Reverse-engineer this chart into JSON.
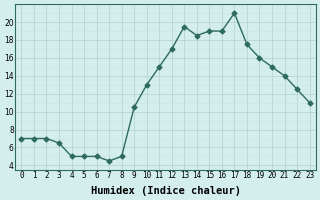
{
  "x": [
    0,
    1,
    2,
    3,
    4,
    5,
    6,
    7,
    8,
    9,
    10,
    11,
    12,
    13,
    14,
    15,
    16,
    17,
    18,
    19,
    20,
    21,
    22,
    23
  ],
  "y": [
    7,
    7,
    7,
    6.5,
    5,
    5,
    5,
    4.5,
    5,
    10.5,
    13,
    15,
    17,
    19.5,
    18.5,
    19,
    19,
    21,
    17.5,
    16,
    15,
    14,
    12.5,
    11
  ],
  "line_color": "#2e6b5e",
  "marker": "D",
  "marker_size": 2.5,
  "bg_color": "#d4eeee",
  "grid_major_color": "#b8d4d4",
  "grid_minor_color": "#c8e4e4",
  "xlabel": "Humidex (Indice chaleur)",
  "xlim": [
    -0.5,
    23.5
  ],
  "ylim": [
    3.5,
    22
  ],
  "yticks": [
    4,
    6,
    8,
    10,
    12,
    14,
    16,
    18,
    20
  ],
  "xtick_labels": [
    "0",
    "1",
    "2",
    "3",
    "4",
    "5",
    "6",
    "7",
    "8",
    "9",
    "10",
    "11",
    "12",
    "13",
    "14",
    "15",
    "16",
    "17",
    "18",
    "19",
    "20",
    "21",
    "22",
    "23"
  ],
  "tick_fontsize": 5.5,
  "xlabel_fontsize": 7.5
}
